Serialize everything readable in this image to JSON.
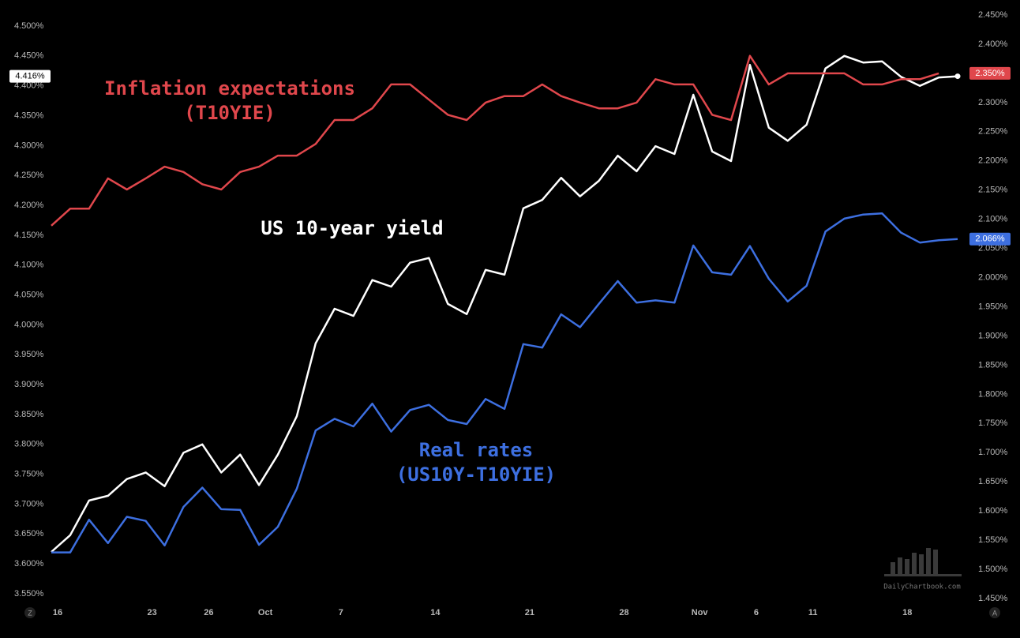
{
  "chart_data": {
    "type": "line",
    "categories": [
      "16",
      null,
      null,
      null,
      null,
      "23",
      null,
      null,
      "26",
      null,
      null,
      "Oct",
      null,
      null,
      null,
      "7",
      null,
      null,
      null,
      null,
      "14",
      null,
      null,
      null,
      null,
      "21",
      null,
      null,
      null,
      null,
      "28",
      null,
      null,
      null,
      "Nov",
      null,
      null,
      "6",
      null,
      null,
      "11",
      null,
      null,
      null,
      null,
      "18",
      null,
      null,
      null
    ],
    "ylim": [
      3.55,
      4.5
    ],
    "yticks": [
      {
        "value": 3.55,
        "label": "3.550%"
      },
      {
        "value": 3.6,
        "label": "3.600%"
      },
      {
        "value": 3.65,
        "label": "3.650%"
      },
      {
        "value": 3.7,
        "label": "3.700%"
      },
      {
        "value": 3.75,
        "label": "3.750%"
      },
      {
        "value": 3.8,
        "label": "3.800%"
      },
      {
        "value": 3.85,
        "label": "3.850%"
      },
      {
        "value": 3.9,
        "label": "3.900%"
      },
      {
        "value": 3.95,
        "label": "3.950%"
      },
      {
        "value": 4.0,
        "label": "4.000%"
      },
      {
        "value": 4.05,
        "label": "4.050%"
      },
      {
        "value": 4.1,
        "label": "4.100%"
      },
      {
        "value": 4.15,
        "label": "4.150%"
      },
      {
        "value": 4.2,
        "label": "4.200%"
      },
      {
        "value": 4.25,
        "label": "4.250%"
      },
      {
        "value": 4.3,
        "label": "4.300%"
      },
      {
        "value": 4.35,
        "label": "4.350%"
      },
      {
        "value": 4.4,
        "label": "4.400%"
      },
      {
        "value": 4.45,
        "label": "4.450%"
      },
      {
        "value": 4.5,
        "label": "4.500%"
      }
    ],
    "y2lim": [
      1.45,
      2.45
    ],
    "y2ticks": [
      {
        "value": 1.45,
        "label": "1.450%"
      },
      {
        "value": 1.5,
        "label": "1.500%"
      },
      {
        "value": 1.55,
        "label": "1.550%"
      },
      {
        "value": 1.6,
        "label": "1.600%"
      },
      {
        "value": 1.65,
        "label": "1.650%"
      },
      {
        "value": 1.7,
        "label": "1.700%"
      },
      {
        "value": 1.75,
        "label": "1.750%"
      },
      {
        "value": 1.8,
        "label": "1.800%"
      },
      {
        "value": 1.85,
        "label": "1.850%"
      },
      {
        "value": 1.9,
        "label": "1.900%"
      },
      {
        "value": 1.95,
        "label": "1.950%"
      },
      {
        "value": 2.0,
        "label": "2.000%"
      },
      {
        "value": 2.05,
        "label": "2.050%"
      },
      {
        "value": 2.1,
        "label": "2.100%"
      },
      {
        "value": 2.15,
        "label": "2.150%"
      },
      {
        "value": 2.2,
        "label": "2.200%"
      },
      {
        "value": 2.25,
        "label": "2.250%"
      },
      {
        "value": 2.3,
        "label": "2.300%"
      },
      {
        "value": 2.35,
        "label": "2.350%"
      },
      {
        "value": 2.4,
        "label": "2.400%"
      },
      {
        "value": 2.45,
        "label": "2.450%"
      }
    ],
    "grid": false,
    "series": [
      {
        "color": "#ffffff",
        "axis": "y",
        "values": [
          3.62,
          3.648,
          3.706,
          3.714,
          3.742,
          3.753,
          3.73,
          3.786,
          3.8,
          3.753,
          3.783,
          3.732,
          3.783,
          3.847,
          3.969,
          4.027,
          4.015,
          4.075,
          4.064,
          4.104,
          4.112,
          4.035,
          4.018,
          4.092,
          4.084,
          4.195,
          4.209,
          4.246,
          4.215,
          4.241,
          4.283,
          4.257,
          4.299,
          4.286,
          4.385,
          4.29,
          4.274,
          4.435,
          4.33,
          4.308,
          4.335,
          4.429,
          4.45,
          4.439,
          4.441,
          4.415,
          4.4,
          4.414,
          4.416
        ],
        "value_labels": [
          null,
          null,
          null,
          null,
          null,
          null,
          null,
          null,
          null,
          null,
          null,
          null,
          null,
          null,
          null,
          null,
          null,
          null,
          null,
          null,
          null,
          null,
          null,
          null,
          null,
          null,
          null,
          null,
          null,
          null,
          null,
          null,
          null,
          null,
          null,
          null,
          null,
          null,
          null,
          null,
          null,
          null,
          null,
          null,
          null,
          null,
          null,
          null,
          "4.416%"
        ]
      },
      {
        "color": "#e0474c",
        "axis": "y2",
        "values": [
          2.089,
          2.118,
          2.118,
          2.17,
          2.151,
          2.17,
          2.19,
          2.181,
          2.16,
          2.151,
          2.181,
          2.19,
          2.209,
          2.209,
          2.229,
          2.27,
          2.27,
          2.29,
          2.331,
          2.331,
          2.305,
          2.279,
          2.27,
          2.3,
          2.311,
          2.311,
          2.331,
          2.311,
          2.3,
          2.29,
          2.29,
          2.3,
          2.34,
          2.331,
          2.331,
          2.279,
          2.27,
          2.38,
          2.331,
          2.35,
          2.35,
          2.35,
          2.35,
          2.331,
          2.331,
          2.34,
          2.34,
          2.35,
          null
        ],
        "value_labels": [
          null,
          null,
          null,
          null,
          null,
          null,
          null,
          null,
          null,
          null,
          null,
          null,
          null,
          null,
          null,
          null,
          null,
          null,
          null,
          null,
          null,
          null,
          null,
          null,
          null,
          null,
          null,
          null,
          null,
          null,
          null,
          null,
          null,
          null,
          null,
          null,
          null,
          null,
          null,
          null,
          null,
          null,
          null,
          null,
          null,
          null,
          null,
          "2.350%",
          null
        ]
      },
      {
        "color": "#3d6fe0",
        "axis": "y2",
        "values": [
          1.529,
          1.529,
          1.585,
          1.545,
          1.59,
          1.583,
          1.541,
          1.607,
          1.64,
          1.603,
          1.602,
          1.542,
          1.573,
          1.638,
          1.738,
          1.758,
          1.745,
          1.784,
          1.736,
          1.773,
          1.782,
          1.756,
          1.749,
          1.792,
          1.775,
          1.886,
          1.88,
          1.937,
          1.915,
          1.955,
          1.994,
          1.957,
          1.961,
          1.957,
          2.055,
          2.009,
          2.005,
          2.054,
          1.998,
          1.959,
          1.986,
          2.079,
          2.101,
          2.108,
          2.11,
          2.077,
          2.06,
          2.064,
          2.066
        ],
        "value_labels": [
          null,
          null,
          null,
          null,
          null,
          null,
          null,
          null,
          null,
          null,
          null,
          null,
          null,
          null,
          null,
          null,
          null,
          null,
          null,
          null,
          null,
          null,
          null,
          null,
          null,
          null,
          null,
          null,
          null,
          null,
          null,
          null,
          null,
          null,
          null,
          null,
          null,
          null,
          null,
          null,
          null,
          null,
          null,
          null,
          null,
          null,
          null,
          null,
          "2.066%"
        ]
      }
    ],
    "annotations": [
      {
        "text": "Inflation expectations",
        "color": "#e0474c"
      },
      {
        "text": "(T10YIE)",
        "color": "#e0474c"
      },
      {
        "text": "US 10-year yield",
        "color": "#ffffff"
      },
      {
        "text": "Real rates",
        "color": "#3d6fe0"
      },
      {
        "text": "(US10Y-T10YIE)",
        "color": "#3d6fe0"
      }
    ],
    "watermark": "DailyChartbook.com",
    "corner_labels": [
      "Z",
      "A"
    ]
  }
}
